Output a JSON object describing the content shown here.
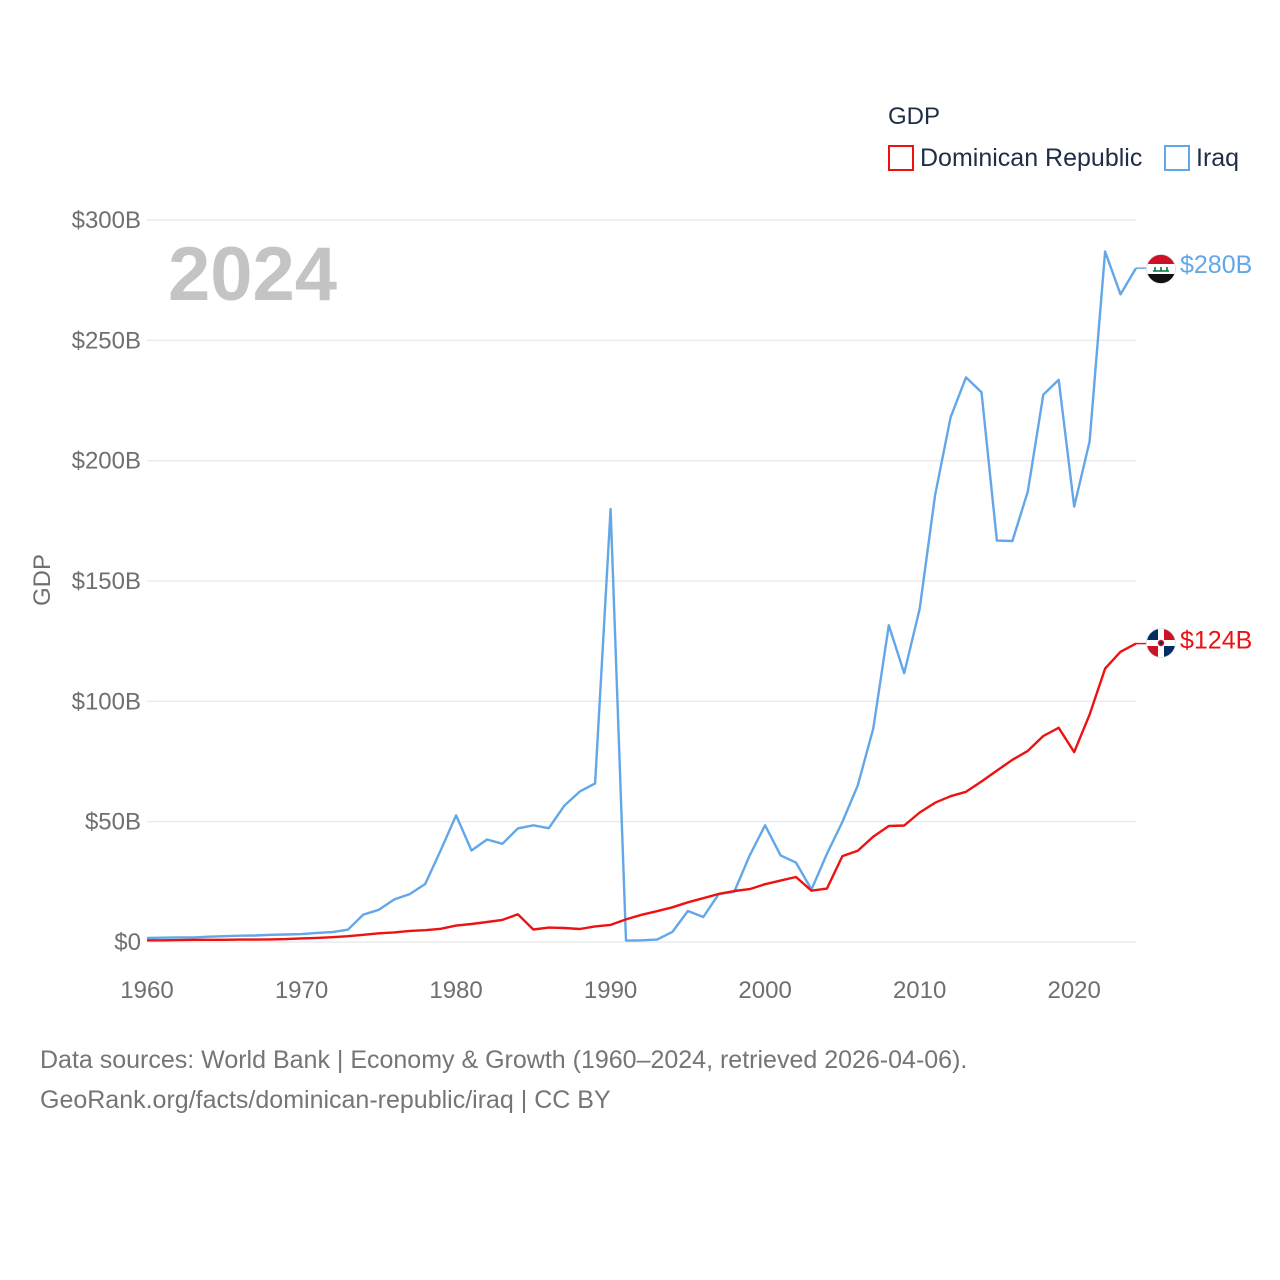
{
  "colors": {
    "dominican": "#ee1111",
    "iraq": "#63a7e8",
    "grid": "#e6e6e6",
    "tick": "#6f6f6f"
  },
  "chart_data": {
    "type": "line",
    "title": "",
    "year_label": "2024",
    "ylabel": "GDP",
    "xlabel": "",
    "ylim": [
      0,
      300
    ],
    "xlim": [
      1960,
      2024
    ],
    "y_ticks": [
      0,
      50,
      100,
      150,
      200,
      250,
      300
    ],
    "y_tick_labels": [
      "$0",
      "$50B",
      "$100B",
      "$150B",
      "$200B",
      "$250B",
      "$300B"
    ],
    "x_ticks": [
      1960,
      1970,
      1980,
      1990,
      2000,
      2010,
      2020
    ],
    "x_tick_labels": [
      "1960",
      "1970",
      "1980",
      "1990",
      "2000",
      "2010",
      "2020"
    ],
    "legend": {
      "title": "GDP",
      "position": "top-right",
      "entries": [
        "Dominican Republic",
        "Iraq"
      ]
    },
    "series": [
      {
        "name": "Dominican Republic",
        "key": "dominican",
        "end_label": "$124B",
        "flag": "dominican-flag",
        "x": [
          1960,
          1961,
          1962,
          1963,
          1964,
          1965,
          1966,
          1967,
          1968,
          1969,
          1970,
          1971,
          1972,
          1973,
          1974,
          1975,
          1976,
          1977,
          1978,
          1979,
          1980,
          1981,
          1982,
          1983,
          1984,
          1985,
          1986,
          1987,
          1988,
          1989,
          1990,
          1991,
          1992,
          1993,
          1994,
          1995,
          1996,
          1997,
          1998,
          1999,
          2000,
          2001,
          2002,
          2003,
          2004,
          2005,
          2006,
          2007,
          2008,
          2009,
          2010,
          2011,
          2012,
          2013,
          2014,
          2015,
          2016,
          2017,
          2018,
          2019,
          2020,
          2021,
          2022,
          2023,
          2024
        ],
        "values": [
          0.7,
          0.7,
          0.8,
          0.9,
          0.9,
          0.9,
          1.0,
          1.0,
          1.1,
          1.2,
          1.5,
          1.7,
          2.0,
          2.4,
          3.0,
          3.6,
          4.0,
          4.6,
          4.9,
          5.5,
          6.8,
          7.5,
          8.3,
          9.2,
          11.5,
          5.2,
          6.0,
          5.8,
          5.4,
          6.5,
          7.1,
          9.4,
          11.3,
          12.8,
          14.4,
          16.5,
          18.2,
          20.0,
          21.2,
          22.0,
          24.0,
          25.5,
          27.0,
          21.3,
          22.2,
          35.7,
          37.9,
          43.8,
          48.2,
          48.4,
          53.8,
          57.9,
          60.6,
          62.4,
          66.7,
          71.2,
          75.7,
          79.4,
          85.6,
          89.0,
          78.9,
          94.5,
          113.6,
          120.6,
          124.0
        ]
      },
      {
        "name": "Iraq",
        "key": "iraq",
        "end_label": "$280B",
        "flag": "iraq-flag",
        "x": [
          1960,
          1961,
          1962,
          1963,
          1964,
          1965,
          1966,
          1967,
          1968,
          1969,
          1970,
          1971,
          1972,
          1973,
          1974,
          1975,
          1976,
          1977,
          1978,
          1979,
          1980,
          1981,
          1982,
          1983,
          1984,
          1985,
          1986,
          1987,
          1988,
          1989,
          1990,
          1991,
          1992,
          1993,
          1994,
          1995,
          1996,
          1997,
          1998,
          1999,
          2000,
          2001,
          2002,
          2003,
          2004,
          2005,
          2006,
          2007,
          2008,
          2009,
          2010,
          2011,
          2012,
          2013,
          2014,
          2015,
          2016,
          2017,
          2018,
          2019,
          2020,
          2021,
          2022,
          2023,
          2024
        ],
        "values": [
          1.7,
          1.8,
          1.9,
          1.9,
          2.2,
          2.4,
          2.6,
          2.7,
          3.0,
          3.1,
          3.3,
          3.8,
          4.1,
          5.1,
          11.4,
          13.4,
          17.7,
          19.9,
          24.1,
          38.0,
          52.6,
          38.0,
          42.6,
          40.8,
          47.2,
          48.5,
          47.3,
          56.6,
          62.5,
          65.9,
          179.9,
          0.6,
          0.7,
          1.0,
          4.2,
          12.9,
          10.4,
          20.0,
          20.8,
          36.0,
          48.5,
          36.0,
          33.0,
          21.8,
          36.6,
          49.9,
          65.1,
          88.8,
          131.6,
          111.7,
          138.5,
          185.7,
          218.0,
          234.6,
          228.4,
          166.8,
          166.6,
          187.2,
          227.4,
          233.6,
          180.9,
          208.0,
          286.9,
          269.1,
          280.0
        ]
      }
    ]
  },
  "footer": {
    "line1": "Data sources: World Bank | Economy & Growth (1960–2024, retrieved 2026-04-06).",
    "line2": "GeoRank.org/facts/dominican-republic/iraq | CC BY"
  }
}
